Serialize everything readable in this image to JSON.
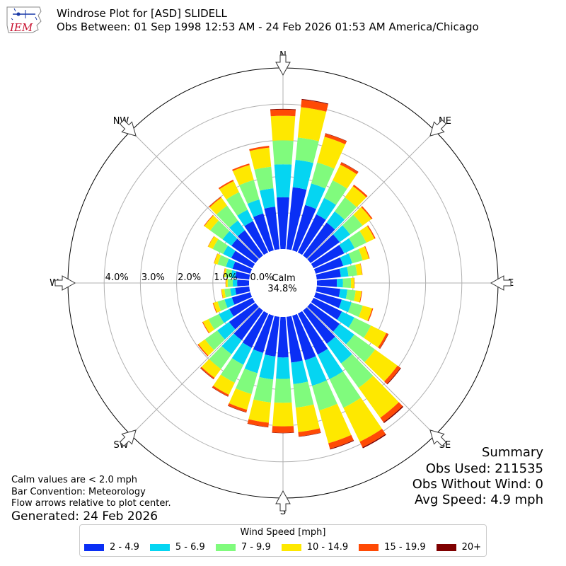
{
  "header": {
    "title": "Windrose Plot for [ASD] SLIDELL",
    "subtitle": "Obs Between: 01 Sep 1998 12:53 AM - 24 Feb 2026 01:53 AM America/Chicago",
    "logo_text": "IEM"
  },
  "notes": {
    "calm_note": "Calm values are < 2.0 mph",
    "bar_convention": "Bar Convention: Meteorology",
    "flow_note": "Flow arrows relative to plot center.",
    "generated": "Generated: 24 Feb 2026"
  },
  "summary": {
    "title": "Summary",
    "obs_used": "Obs Used: 211535",
    "obs_without_wind": "Obs Without Wind: 0",
    "avg_speed": "Avg Speed: 4.9 mph"
  },
  "legend": {
    "title": "Wind Speed [mph]",
    "items": [
      {
        "label": "2 - 4.9",
        "color": "#0a2ff5"
      },
      {
        "label": "5 - 6.9",
        "color": "#05d5f2"
      },
      {
        "label": "7 - 9.9",
        "color": "#80fb7d"
      },
      {
        "label": "10 - 14.9",
        "color": "#fee800"
      },
      {
        "label": "15 - 19.9",
        "color": "#ff4a05"
      },
      {
        "label": "20+",
        "color": "#7f0000"
      }
    ]
  },
  "chart_data": {
    "type": "windrose",
    "directions": [
      "N",
      "NE",
      "E",
      "SE",
      "S",
      "SW",
      "W",
      "NW"
    ],
    "radial_ticks": [
      0,
      1,
      2,
      3,
      4
    ],
    "radial_tick_labels": [
      "0.0%",
      "1.0%",
      "2.0%",
      "3.0%",
      "4.0%"
    ],
    "rmax": 5,
    "calm_label": "Calm",
    "calm_value": "34.8%",
    "sector_width_deg": 10,
    "sector_angles_deg": [
      0,
      10,
      20,
      30,
      40,
      50,
      60,
      70,
      80,
      90,
      100,
      110,
      120,
      130,
      140,
      150,
      160,
      170,
      180,
      190,
      200,
      210,
      220,
      230,
      240,
      250,
      260,
      270,
      280,
      290,
      300,
      310,
      320,
      330,
      340,
      350
    ],
    "series": [
      {
        "name": "2 - 4.9",
        "values": [
          1.43,
          1.72,
          1.3,
          1.17,
          1.12,
          0.99,
          0.94,
          0.79,
          0.67,
          0.55,
          0.65,
          0.75,
          0.87,
          0.99,
          1.13,
          1.26,
          1.28,
          1.27,
          1.12,
          1.1,
          1.07,
          1.05,
          1.01,
          0.9,
          0.71,
          0.53,
          0.39,
          0.33,
          0.39,
          0.51,
          0.65,
          0.82,
          0.86,
          0.96,
          1.06,
          1.18
        ]
      },
      {
        "name": "5 - 6.9",
        "values": [
          0.91,
          0.76,
          0.62,
          0.5,
          0.38,
          0.36,
          0.32,
          0.26,
          0.21,
          0.17,
          0.2,
          0.28,
          0.38,
          0.5,
          0.67,
          0.75,
          0.73,
          0.6,
          0.59,
          0.64,
          0.58,
          0.52,
          0.48,
          0.4,
          0.32,
          0.21,
          0.14,
          0.12,
          0.12,
          0.19,
          0.25,
          0.3,
          0.33,
          0.35,
          0.4,
          0.51
        ]
      },
      {
        "name": "7 - 9.9",
        "values": [
          0.66,
          0.62,
          0.6,
          0.54,
          0.48,
          0.42,
          0.36,
          0.3,
          0.24,
          0.22,
          0.23,
          0.32,
          0.51,
          0.71,
          0.83,
          0.88,
          0.71,
          0.65,
          0.66,
          0.64,
          0.6,
          0.55,
          0.5,
          0.42,
          0.32,
          0.2,
          0.16,
          0.14,
          0.15,
          0.24,
          0.32,
          0.42,
          0.51,
          0.54,
          0.56,
          0.6
        ]
      },
      {
        "name": "10 - 14.9",
        "values": [
          0.68,
          0.84,
          0.74,
          0.48,
          0.38,
          0.3,
          0.25,
          0.18,
          0.14,
          0.09,
          0.16,
          0.27,
          0.47,
          0.76,
          1.02,
          1.04,
          0.94,
          0.68,
          0.65,
          0.56,
          0.45,
          0.37,
          0.3,
          0.22,
          0.17,
          0.12,
          0.08,
          0.05,
          0.05,
          0.1,
          0.14,
          0.2,
          0.27,
          0.34,
          0.43,
          0.53
        ]
      },
      {
        "name": "15 - 19.9",
        "values": [
          0.17,
          0.21,
          0.09,
          0.07,
          0.05,
          0.04,
          0.03,
          0.02,
          0.01,
          0.01,
          0.02,
          0.03,
          0.06,
          0.1,
          0.15,
          0.17,
          0.16,
          0.12,
          0.18,
          0.12,
          0.07,
          0.05,
          0.04,
          0.03,
          0.02,
          0.02,
          0.01,
          0.01,
          0.01,
          0.01,
          0.01,
          0.02,
          0.03,
          0.04,
          0.04,
          0.05
        ]
      },
      {
        "name": "20+",
        "values": [
          0.02,
          0.02,
          0.01,
          0.01,
          0.0,
          0.0,
          0.0,
          0.0,
          0.0,
          0.0,
          0.0,
          0.0,
          0.01,
          0.02,
          0.03,
          0.03,
          0.02,
          0.01,
          0.01,
          0.01,
          0.01,
          0.01,
          0.01,
          0.0,
          0.0,
          0.0,
          0.0,
          0.0,
          0.0,
          0.0,
          0.0,
          0.0,
          0.0,
          0.0,
          0.0,
          0.0
        ]
      }
    ]
  }
}
